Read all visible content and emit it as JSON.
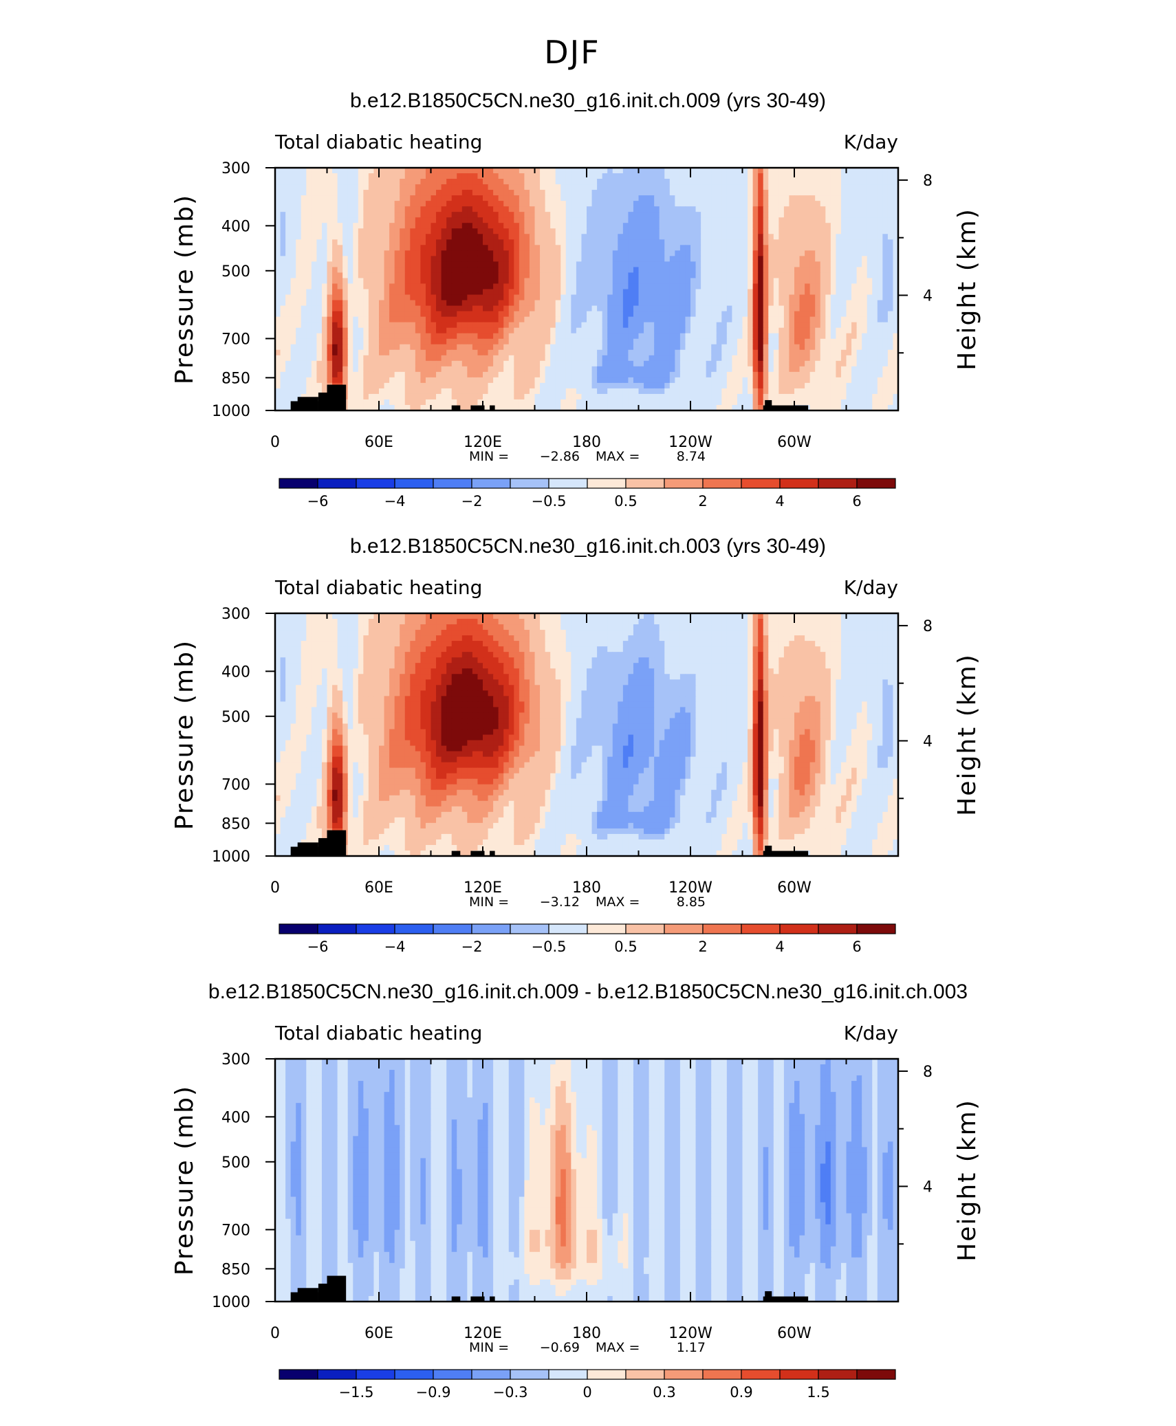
{
  "figure": {
    "title": "DJF"
  },
  "chart_data": [
    {
      "type": "heatmap",
      "title": "b.e12.B1850C5CN.ne30_g16.init.ch.009 (yrs 30-49)",
      "left_string": "Total diabatic heating",
      "right_string": "K/day",
      "ylabel": "Pressure (mb)",
      "ylabel_right": "Height (km)",
      "x_tick_labels": [
        "0",
        "60E",
        "120E",
        "180",
        "120W",
        "60W"
      ],
      "x_ticks_deg": [
        0,
        60,
        120,
        180,
        240,
        300
      ],
      "y_tick_labels": [
        "300",
        "400",
        "500",
        "700",
        "850",
        "1000"
      ],
      "y_ticks_mb": [
        300,
        400,
        500,
        700,
        850,
        1000
      ],
      "y_right_tick_labels": [
        "8",
        "4"
      ],
      "y_right_ticks_km": [
        8,
        4
      ],
      "xlim": [
        0,
        360
      ],
      "ylim": [
        1000,
        300
      ],
      "min_label": "MIN =",
      "min_value": "-2.86",
      "max_label": "MAX =",
      "max_value": "8.74",
      "colorbar_tick_labels": [
        "-6",
        "-4",
        "-2",
        "-0.5",
        "0.5",
        "2",
        "4",
        "6"
      ],
      "colorbar_levels": [
        -7,
        -6,
        -5,
        -4,
        -3,
        -2,
        -1,
        -0.5,
        0.5,
        1,
        2,
        3,
        4,
        5,
        6,
        7
      ],
      "colorbar_colors": [
        "#08006e",
        "#0a1fc0",
        "#1a3ee6",
        "#2c5ff0",
        "#4f7ef5",
        "#7aa1f7",
        "#a6c2f8",
        "#d5e6fb",
        "#fde9d8",
        "#f9c2a6",
        "#f59b78",
        "#ef7550",
        "#e64d2e",
        "#d2301a",
        "#ae1f14",
        "#7d0a0a"
      ],
      "scale": 1.0
    },
    {
      "type": "heatmap",
      "title": "b.e12.B1850C5CN.ne30_g16.init.ch.003 (yrs 30-49)",
      "left_string": "Total diabatic heating",
      "right_string": "K/day",
      "ylabel": "Pressure (mb)",
      "ylabel_right": "Height (km)",
      "x_tick_labels": [
        "0",
        "60E",
        "120E",
        "180",
        "120W",
        "60W"
      ],
      "x_ticks_deg": [
        0,
        60,
        120,
        180,
        240,
        300
      ],
      "y_tick_labels": [
        "300",
        "400",
        "500",
        "700",
        "850",
        "1000"
      ],
      "y_ticks_mb": [
        300,
        400,
        500,
        700,
        850,
        1000
      ],
      "y_right_tick_labels": [
        "8",
        "4"
      ],
      "y_right_ticks_km": [
        8,
        4
      ],
      "xlim": [
        0,
        360
      ],
      "ylim": [
        1000,
        300
      ],
      "min_label": "MIN =",
      "min_value": "-3.12",
      "max_label": "MAX =",
      "max_value": "8.85",
      "colorbar_tick_labels": [
        "-6",
        "-4",
        "-2",
        "-0.5",
        "0.5",
        "2",
        "4",
        "6"
      ],
      "colorbar_levels": [
        -7,
        -6,
        -5,
        -4,
        -3,
        -2,
        -1,
        -0.5,
        0.5,
        1,
        2,
        3,
        4,
        5,
        6,
        7
      ],
      "colorbar_colors": [
        "#08006e",
        "#0a1fc0",
        "#1a3ee6",
        "#2c5ff0",
        "#4f7ef5",
        "#7aa1f7",
        "#a6c2f8",
        "#d5e6fb",
        "#fde9d8",
        "#f9c2a6",
        "#f59b78",
        "#ef7550",
        "#e64d2e",
        "#d2301a",
        "#ae1f14",
        "#7d0a0a"
      ],
      "scale": 1.0
    },
    {
      "type": "heatmap",
      "title": "b.e12.B1850C5CN.ne30_g16.init.ch.009 - b.e12.B1850C5CN.ne30_g16.init.ch.003",
      "left_string": "Total diabatic heating",
      "right_string": "K/day",
      "ylabel": "Pressure (mb)",
      "ylabel_right": "Height (km)",
      "x_tick_labels": [
        "0",
        "60E",
        "120E",
        "180",
        "120W",
        "60W"
      ],
      "x_ticks_deg": [
        0,
        60,
        120,
        180,
        240,
        300
      ],
      "y_tick_labels": [
        "300",
        "400",
        "500",
        "700",
        "850",
        "1000"
      ],
      "y_ticks_mb": [
        300,
        400,
        500,
        700,
        850,
        1000
      ],
      "y_right_tick_labels": [
        "8",
        "4"
      ],
      "y_right_ticks_km": [
        8,
        4
      ],
      "xlim": [
        0,
        360
      ],
      "ylim": [
        1000,
        300
      ],
      "min_label": "MIN =",
      "min_value": "-0.69",
      "max_label": "MAX =",
      "max_value": "1.17",
      "colorbar_tick_labels": [
        "-1.5",
        "-0.9",
        "-0.3",
        "0",
        "0.3",
        "0.9",
        "1.5"
      ],
      "colorbar_levels": [
        -2.1,
        -1.8,
        -1.5,
        -1.2,
        -0.9,
        -0.6,
        -0.3,
        0,
        0.3,
        0.6,
        0.9,
        1.2,
        1.5,
        1.8,
        2.1
      ],
      "colorbar_colors": [
        "#08006e",
        "#0a1fc0",
        "#1a3ee6",
        "#2c5ff0",
        "#4f7ef5",
        "#7aa1f7",
        "#a6c2f8",
        "#d5e6fb",
        "#fde9d8",
        "#f9c2a6",
        "#f59b78",
        "#ef7550",
        "#e64d2e",
        "#d2301a",
        "#ae1f14",
        "#7d0a0a"
      ],
      "scale": 0.15
    }
  ]
}
